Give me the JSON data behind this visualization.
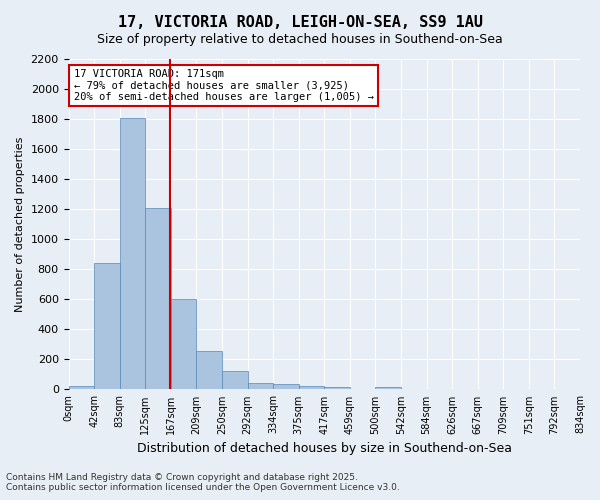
{
  "title": "17, VICTORIA ROAD, LEIGH-ON-SEA, SS9 1AU",
  "subtitle": "Size of property relative to detached houses in Southend-on-Sea",
  "xlabel": "Distribution of detached houses by size in Southend-on-Sea",
  "ylabel": "Number of detached properties",
  "bin_labels": [
    "0sqm",
    "42sqm",
    "83sqm",
    "125sqm",
    "167sqm",
    "209sqm",
    "250sqm",
    "292sqm",
    "334sqm",
    "375sqm",
    "417sqm",
    "459sqm",
    "500sqm",
    "542sqm",
    "584sqm",
    "626sqm",
    "667sqm",
    "709sqm",
    "751sqm",
    "792sqm",
    "834sqm"
  ],
  "bar_values": [
    20,
    840,
    1810,
    1210,
    600,
    255,
    125,
    45,
    35,
    25,
    15,
    0,
    15,
    0,
    0,
    0,
    0,
    0,
    0,
    0
  ],
  "bar_color": "#aac4e0",
  "bar_edge_color": "#5588bb",
  "background_color": "#e8eef5",
  "grid_color": "#ffffff",
  "annotation_text": "17 VICTORIA ROAD: 171sqm\n← 79% of detached houses are smaller (3,925)\n20% of semi-detached houses are larger (1,005) →",
  "annotation_box_color": "#ffffff",
  "annotation_box_edge": "#cc0000",
  "vertical_line_x": 3.95,
  "ylim": [
    0,
    2200
  ],
  "yticks": [
    0,
    200,
    400,
    600,
    800,
    1000,
    1200,
    1400,
    1600,
    1800,
    2000,
    2200
  ],
  "footer_line1": "Contains HM Land Registry data © Crown copyright and database right 2025.",
  "footer_line2": "Contains public sector information licensed under the Open Government Licence v3.0."
}
